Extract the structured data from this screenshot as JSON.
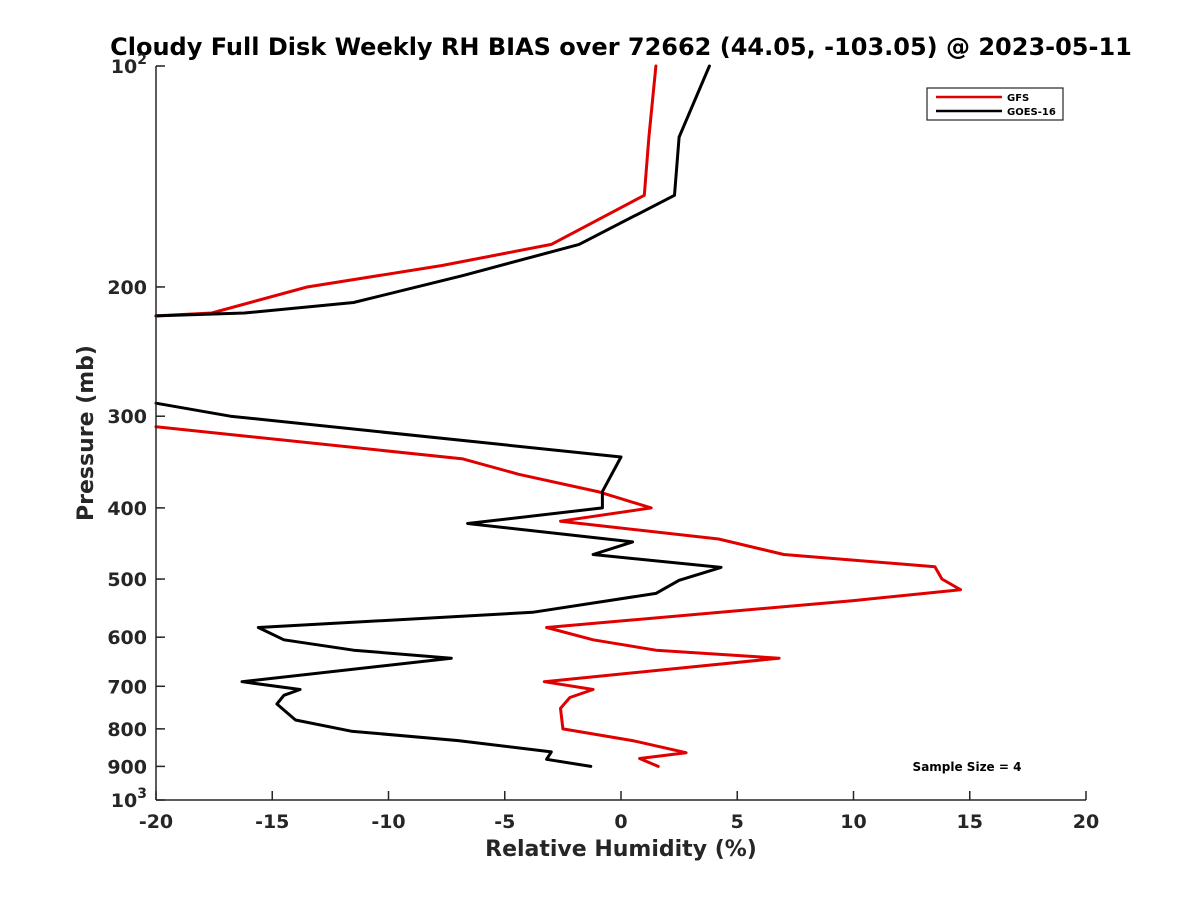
{
  "chart_data": {
    "type": "line",
    "title": "Cloudy Full Disk Weekly RH BIAS over 72662 (44.05, -103.05) @ 2023-05-11",
    "xlabel": "Relative Humidity (%)",
    "ylabel": "Pressure (mb)",
    "xlim": [
      -20,
      20
    ],
    "ylim": [
      100,
      1000
    ],
    "y_scale": "log",
    "y_reversed": true,
    "grid": false,
    "legend_position": "top-right",
    "x_ticks": [
      "-20",
      "-15",
      "-10",
      "-5",
      "0",
      "5",
      "10",
      "15",
      "20"
    ],
    "y_ticks": [
      {
        "value": 100,
        "base": "10",
        "exp": "2"
      },
      {
        "value": 200,
        "label": "200"
      },
      {
        "value": 300,
        "label": "300"
      },
      {
        "value": 400,
        "label": "400"
      },
      {
        "value": 500,
        "label": "500"
      },
      {
        "value": 600,
        "label": "600"
      },
      {
        "value": 700,
        "label": "700"
      },
      {
        "value": 800,
        "label": "800"
      },
      {
        "value": 900,
        "label": "900"
      },
      {
        "value": 1000,
        "base": "10",
        "exp": "3"
      }
    ],
    "series": [
      {
        "name": "GFS",
        "color": "#e00000",
        "points": [
          {
            "x": 1.5,
            "y": 100
          },
          {
            "x": 1.2,
            "y": 125
          },
          {
            "x": 1.0,
            "y": 150
          },
          {
            "x": -3.0,
            "y": 175
          },
          {
            "x": -7.7,
            "y": 187
          },
          {
            "x": -13.5,
            "y": 200
          },
          {
            "x": -17.6,
            "y": 217
          },
          {
            "x": -20.0,
            "y": 219
          },
          {
            "x": null,
            "y": null
          },
          {
            "x": -20.0,
            "y": 310
          },
          {
            "x": -6.8,
            "y": 343
          },
          {
            "x": -4.4,
            "y": 360
          },
          {
            "x": -1.0,
            "y": 380
          },
          {
            "x": 1.3,
            "y": 400
          },
          {
            "x": -2.6,
            "y": 417
          },
          {
            "x": 4.2,
            "y": 441
          },
          {
            "x": 7.0,
            "y": 463
          },
          {
            "x": 13.5,
            "y": 481
          },
          {
            "x": 13.8,
            "y": 500
          },
          {
            "x": 14.6,
            "y": 517
          },
          {
            "x": 10.0,
            "y": 535
          },
          {
            "x": -3.2,
            "y": 582
          },
          {
            "x": -1.2,
            "y": 605
          },
          {
            "x": 1.5,
            "y": 625
          },
          {
            "x": 6.8,
            "y": 641
          },
          {
            "x": 2.8,
            "y": 660
          },
          {
            "x": -3.3,
            "y": 690
          },
          {
            "x": -1.2,
            "y": 707
          },
          {
            "x": -2.2,
            "y": 725
          },
          {
            "x": -2.6,
            "y": 750
          },
          {
            "x": -2.5,
            "y": 800
          },
          {
            "x": 0.5,
            "y": 830
          },
          {
            "x": 2.8,
            "y": 862
          },
          {
            "x": 0.8,
            "y": 878
          },
          {
            "x": 1.6,
            "y": 900
          }
        ]
      },
      {
        "name": "GOES-16",
        "color": "#000000",
        "points": [
          {
            "x": 3.8,
            "y": 100
          },
          {
            "x": 2.5,
            "y": 125
          },
          {
            "x": 2.3,
            "y": 150
          },
          {
            "x": -1.8,
            "y": 175
          },
          {
            "x": -6.8,
            "y": 193
          },
          {
            "x": -11.5,
            "y": 210
          },
          {
            "x": -16.2,
            "y": 217
          },
          {
            "x": -20.0,
            "y": 219
          },
          {
            "x": null,
            "y": null
          },
          {
            "x": -20.0,
            "y": 288
          },
          {
            "x": -16.8,
            "y": 300
          },
          {
            "x": 0.0,
            "y": 341
          },
          {
            "x": -0.8,
            "y": 380
          },
          {
            "x": -0.8,
            "y": 400
          },
          {
            "x": -6.6,
            "y": 420
          },
          {
            "x": 0.5,
            "y": 445
          },
          {
            "x": -1.2,
            "y": 463
          },
          {
            "x": 4.3,
            "y": 482
          },
          {
            "x": 2.5,
            "y": 502
          },
          {
            "x": 1.5,
            "y": 523
          },
          {
            "x": -3.8,
            "y": 555
          },
          {
            "x": -15.6,
            "y": 582
          },
          {
            "x": -14.5,
            "y": 605
          },
          {
            "x": -11.5,
            "y": 625
          },
          {
            "x": -7.3,
            "y": 641
          },
          {
            "x": -16.3,
            "y": 690
          },
          {
            "x": -13.8,
            "y": 707
          },
          {
            "x": -14.5,
            "y": 720
          },
          {
            "x": -14.8,
            "y": 740
          },
          {
            "x": -14.0,
            "y": 778
          },
          {
            "x": -11.6,
            "y": 806
          },
          {
            "x": -7.0,
            "y": 830
          },
          {
            "x": -3.0,
            "y": 860
          },
          {
            "x": -3.2,
            "y": 880
          },
          {
            "x": -1.3,
            "y": 900
          }
        ]
      }
    ],
    "annotation": "Sample Size = 4"
  }
}
